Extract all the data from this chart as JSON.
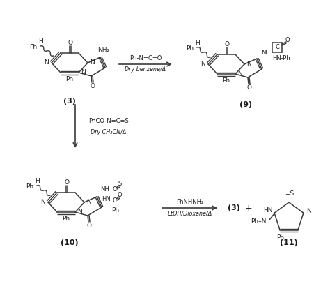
{
  "bg_color": "#ffffff",
  "line_color": "#3a3a3a",
  "text_color": "#1a1a1a",
  "mol3_label": "(3)",
  "mol9_label": "(9)",
  "mol10_label": "(10)",
  "mol11_label": "(11)",
  "rxn1_top": "Ph-N=C=O",
  "rxn1_bot": "Dry benzene/Δ",
  "rxn2_top": "PhCO-N=C=S",
  "rxn2_bot": "Dry CH₃CN/Δ",
  "rxn3_top": "PhNHNH₂",
  "rxn3_bot": "EtOH/Dioxane/Δ",
  "plus": "+"
}
